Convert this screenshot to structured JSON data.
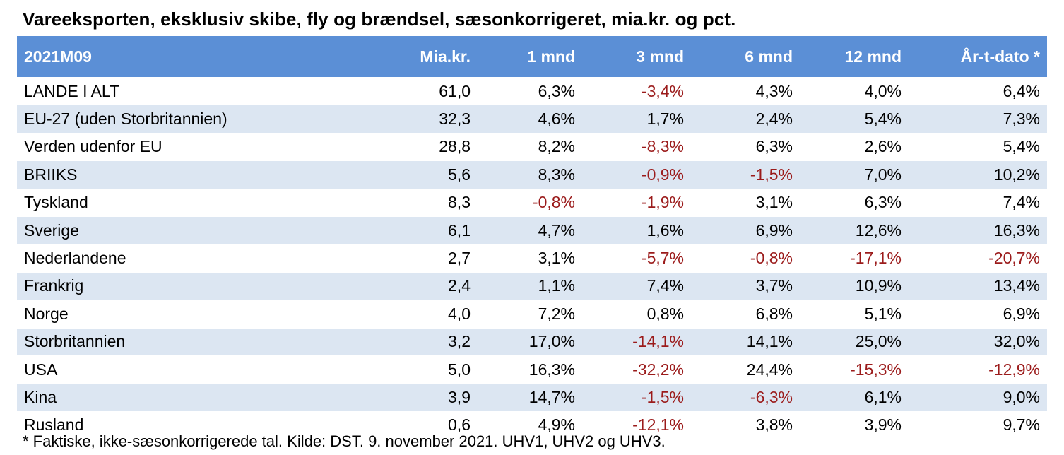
{
  "title": "Vareeksporten, eksklusiv skibe, fly og brændsel, sæsonkorrigeret, mia.kr. og pct.",
  "headers": [
    "2021M09",
    "Mia.kr.",
    "1 mnd",
    "3 mnd",
    "6 mnd",
    "12 mnd",
    "År-t-dato *"
  ],
  "rows": [
    {
      "label": "LANDE I ALT",
      "values": [
        "61,0",
        "6,3%",
        "-3,4%",
        "4,3%",
        "4,0%",
        "6,4%"
      ]
    },
    {
      "label": "EU-27 (uden Storbritannien)",
      "values": [
        "32,3",
        "4,6%",
        "1,7%",
        "2,4%",
        "5,4%",
        "7,3%"
      ]
    },
    {
      "label": "Verden udenfor EU",
      "values": [
        "28,8",
        "8,2%",
        "-8,3%",
        "6,3%",
        "2,6%",
        "5,4%"
      ]
    },
    {
      "label": "BRIIKS",
      "values": [
        "5,6",
        "8,3%",
        "-0,9%",
        "-1,5%",
        "7,0%",
        "10,2%"
      ]
    },
    {
      "label": "Tyskland",
      "values": [
        "8,3",
        "-0,8%",
        "-1,9%",
        "3,1%",
        "6,3%",
        "7,4%"
      ]
    },
    {
      "label": "Sverige",
      "values": [
        "6,1",
        "4,7%",
        "1,6%",
        "6,9%",
        "12,6%",
        "16,3%"
      ]
    },
    {
      "label": "Nederlandene",
      "values": [
        "2,7",
        "3,1%",
        "-5,7%",
        "-0,8%",
        "-17,1%",
        "-20,7%"
      ]
    },
    {
      "label": "Frankrig",
      "values": [
        "2,4",
        "1,1%",
        "7,4%",
        "3,7%",
        "10,9%",
        "13,4%"
      ]
    },
    {
      "label": "Norge",
      "values": [
        "4,0",
        "7,2%",
        "0,8%",
        "6,8%",
        "5,1%",
        "6,9%"
      ]
    },
    {
      "label": "Storbritannien",
      "values": [
        "3,2",
        "17,0%",
        "-14,1%",
        "14,1%",
        "25,0%",
        "32,0%"
      ]
    },
    {
      "label": "USA",
      "values": [
        "5,0",
        "16,3%",
        "-32,2%",
        "24,4%",
        "-15,3%",
        "-12,9%"
      ]
    },
    {
      "label": "Kina",
      "values": [
        "3,9",
        "14,7%",
        "-1,5%",
        "-6,3%",
        "6,1%",
        "9,0%"
      ]
    },
    {
      "label": "Rusland",
      "values": [
        "0,6",
        "4,9%",
        "-12,1%",
        "3,8%",
        "3,9%",
        "9,7%"
      ]
    }
  ],
  "footnote": "* Faktiske, ikke-sæsonkorrigerede tal. Kilde: DST. 9. november 2021. UHV1, UHV2 og UHV3.",
  "colors": {
    "header_bg": "#5b8fd6",
    "stripe": "#dce6f2",
    "negative": "#9b1b1b"
  }
}
